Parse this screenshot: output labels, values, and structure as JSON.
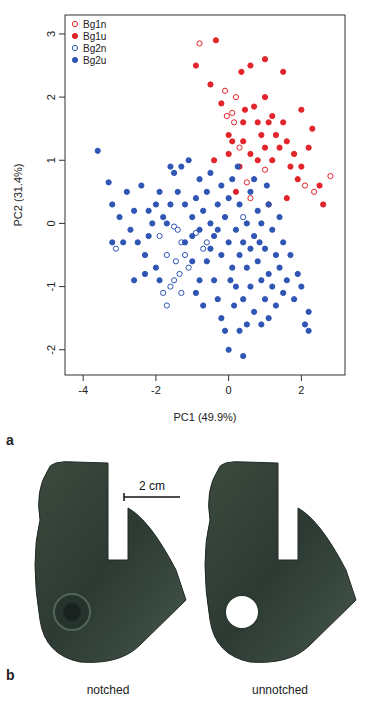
{
  "chart_data": {
    "type": "scatter",
    "x_label": "PC1 (49.9%)",
    "y_label": "PC2 (31.4%)",
    "xlim": [
      -4.5,
      3.2
    ],
    "ylim": [
      -2.4,
      3.3
    ],
    "xticks": [
      -4,
      -2,
      0,
      2
    ],
    "yticks": [
      -2,
      -1,
      0,
      1,
      2,
      3
    ],
    "legend": "top-left",
    "grid": false,
    "series": [
      {
        "name": "Bg1n",
        "color": "#e3242b",
        "marker": "circle-open",
        "x": [
          -0.8,
          -0.1,
          0.1,
          -0.05,
          0.2,
          0.3,
          0.5,
          1.0,
          0.6,
          2.1,
          2.35,
          2.8,
          0.15
        ],
        "values": [
          2.85,
          2.1,
          1.75,
          1.7,
          2.0,
          1.2,
          0.65,
          0.85,
          0.4,
          0.6,
          0.5,
          0.75,
          1.6
        ]
      },
      {
        "name": "Bg1u",
        "color": "#e3242b",
        "marker": "circle",
        "x": [
          -0.35,
          -0.9,
          -0.5,
          0.35,
          0.6,
          1.0,
          1.5,
          0.0,
          0.0,
          0.1,
          0.4,
          0.4,
          0.45,
          0.7,
          0.8,
          0.9,
          1.1,
          1.2,
          1.3,
          1.4,
          0.6,
          0.8,
          1.0,
          1.2,
          1.5,
          1.6,
          1.7,
          1.8,
          2.0,
          2.2,
          2.3,
          2.5,
          2.6,
          1.6,
          1.9,
          0.3,
          -0.4,
          0.2,
          1.1,
          2.0,
          1.0,
          -0.2
        ],
        "values": [
          2.9,
          2.5,
          2.2,
          2.4,
          2.5,
          2.6,
          2.4,
          1.4,
          1.1,
          1.3,
          1.6,
          1.3,
          1.8,
          1.85,
          1.6,
          1.4,
          1.6,
          1.7,
          1.4,
          1.2,
          1.1,
          1.0,
          1.2,
          1.0,
          1.6,
          1.3,
          0.9,
          1.1,
          0.9,
          1.2,
          1.5,
          0.6,
          0.3,
          0.4,
          0.7,
          0.9,
          1.0,
          0.5,
          0.3,
          1.8,
          2.0,
          1.9
        ]
      },
      {
        "name": "Bg2n",
        "color": "#2f55b5",
        "marker": "circle-open",
        "x": [
          -3.1,
          -1.5,
          -1.4,
          -1.7,
          -1.9,
          -1.3,
          -1.2,
          -1.1,
          -1.35,
          -1.5,
          -1.6,
          -1.8,
          -1.3,
          -1.7,
          -0.6,
          -0.7,
          0.4,
          -0.9,
          -1.45
        ],
        "values": [
          -0.4,
          -0.05,
          -0.1,
          -0.5,
          -0.2,
          -0.3,
          -0.5,
          -0.7,
          -0.8,
          -0.9,
          -1.0,
          -1.1,
          -1.1,
          -1.3,
          -0.3,
          -0.4,
          0.1,
          -0.15,
          -0.6
        ]
      },
      {
        "name": "Bg2u",
        "color": "#2f55b5",
        "marker": "circle",
        "x": [
          -3.6,
          -3.3,
          -3.2,
          -3.0,
          -3.2,
          -2.9,
          -2.7,
          -2.6,
          -2.5,
          -2.4,
          -2.2,
          -2.1,
          -2.2,
          -2.3,
          -2.0,
          -1.9,
          -1.8,
          -1.7,
          -2.0,
          -2.3,
          -1.9,
          -1.6,
          -1.5,
          -1.3,
          -1.1,
          -1.4,
          -1.2,
          -1.0,
          -1.0,
          -0.9,
          -0.8,
          -0.8,
          -0.7,
          -0.6,
          -0.5,
          -0.5,
          -0.4,
          -0.3,
          -0.2,
          -0.2,
          -0.1,
          0.0,
          0.0,
          0.1,
          0.1,
          0.2,
          0.2,
          0.3,
          0.3,
          0.4,
          0.4,
          0.5,
          0.5,
          0.6,
          0.6,
          0.7,
          0.7,
          0.8,
          0.8,
          0.9,
          0.9,
          1.0,
          1.0,
          1.1,
          1.1,
          1.2,
          1.2,
          1.3,
          1.3,
          1.4,
          1.4,
          1.5,
          1.5,
          1.6,
          1.7,
          1.8,
          1.9,
          2.0,
          2.2,
          2.1,
          2.2,
          -0.6,
          -0.4,
          -0.3,
          -0.2,
          -0.1,
          0.0,
          0.3,
          0.4,
          0.5,
          -0.8,
          -0.9,
          -0.7,
          -1.0,
          -0.5,
          0.15,
          0.6,
          0.9,
          1.1,
          -2.6,
          -2.8,
          -1.6,
          -1.2,
          0.25,
          0.7,
          -0.3,
          0.05,
          0.85,
          1.05
        ],
        "values": [
          1.15,
          0.65,
          0.3,
          0.1,
          -0.3,
          -0.3,
          -0.1,
          0.2,
          -0.3,
          0.6,
          0.2,
          0.0,
          -0.2,
          -0.5,
          0.3,
          0.5,
          0.1,
          0.0,
          -0.7,
          -0.8,
          -0.9,
          0.9,
          0.8,
          0.9,
          1.0,
          0.5,
          0.3,
          0.1,
          -0.2,
          0.4,
          0.7,
          -0.1,
          0.2,
          0.5,
          0.8,
          0.0,
          -0.2,
          0.3,
          0.6,
          -0.5,
          0.1,
          -0.3,
          0.4,
          -0.7,
          0.7,
          -0.1,
          -1.0,
          0.3,
          -0.5,
          -0.3,
          -1.2,
          0.0,
          -0.7,
          0.5,
          -1.0,
          -0.2,
          -1.4,
          0.2,
          -0.6,
          -0.9,
          0.0,
          -0.4,
          -1.2,
          0.3,
          -0.8,
          -0.1,
          -1.0,
          -0.5,
          -1.3,
          0.1,
          -0.7,
          -1.1,
          -0.3,
          -0.9,
          -0.5,
          -1.2,
          -0.8,
          -1.0,
          -1.4,
          -1.6,
          -1.7,
          -0.6,
          -0.9,
          -1.2,
          -1.5,
          -1.7,
          -2.0,
          -1.7,
          -2.1,
          -1.6,
          -0.9,
          -1.1,
          -1.3,
          -0.6,
          -0.4,
          -1.3,
          -0.4,
          -1.6,
          -1.5,
          -0.9,
          0.5,
          0.3,
          -0.3,
          0.9,
          0.7,
          -0.1,
          -0.9,
          -0.3,
          0.6
        ]
      }
    ]
  },
  "figure": {
    "panel_labels": [
      "a",
      "b"
    ],
    "photo_labels": [
      "notched",
      "unnotched"
    ],
    "scale_bar": "2 cm"
  }
}
